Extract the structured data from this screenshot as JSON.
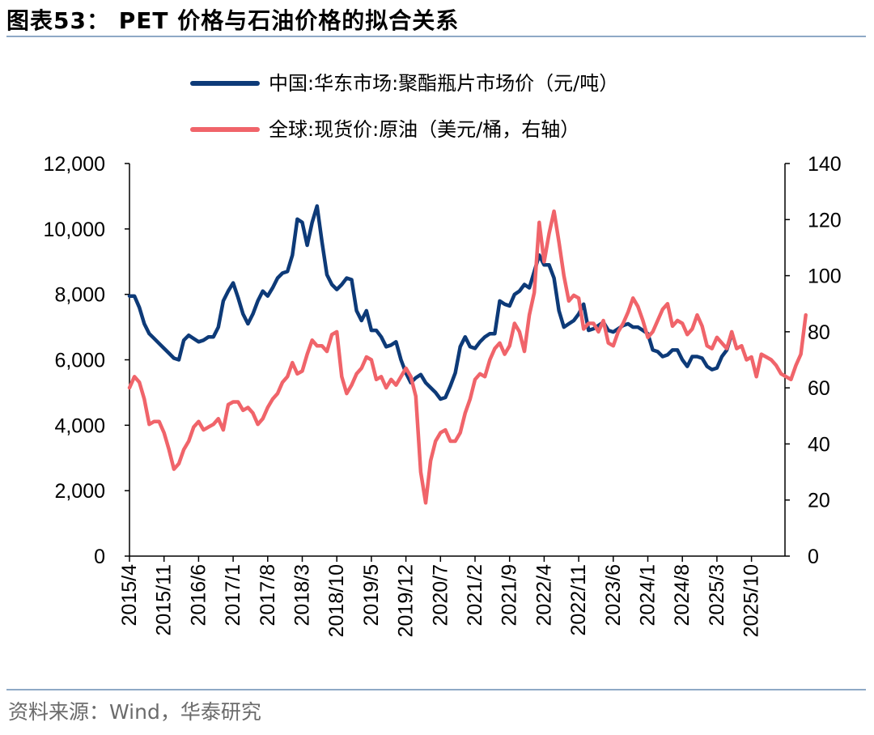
{
  "header": {
    "title": "图表53： PET 价格与石油价格的拟合关系"
  },
  "footer": {
    "source": "资料来源：Wind，华泰研究"
  },
  "chart_data": {
    "type": "line",
    "title": "PET 价格与石油价格的拟合关系",
    "x_tick_labels": [
      "2015/4",
      "2015/11",
      "2016/6",
      "2017/1",
      "2017/8",
      "2018/3",
      "2018/10",
      "2019/5",
      "2019/12",
      "2020/7",
      "2021/2",
      "2021/9",
      "2022/4",
      "2022/11",
      "2023/6",
      "2024/1",
      "2024/8",
      "2025/3",
      "2025/10"
    ],
    "x_start": "2015/4",
    "y_left": {
      "min": 0,
      "max": 12000,
      "ticks": [
        0,
        2000,
        4000,
        6000,
        8000,
        10000,
        12000
      ],
      "tick_labels": [
        "0",
        "2,000",
        "4,000",
        "6,000",
        "8,000",
        "10,000",
        "12,000"
      ]
    },
    "y_right": {
      "min": 0,
      "max": 140,
      "ticks": [
        0,
        20,
        40,
        60,
        80,
        100,
        120,
        140
      ],
      "tick_labels": [
        "0",
        "20",
        "40",
        "60",
        "80",
        "100",
        "120",
        "140"
      ]
    },
    "legend_position": "top-center",
    "colors": {
      "pet": "#0d3a78",
      "oil": "#f0646a",
      "axis": "#000000",
      "rule": "#8ea9c6"
    },
    "series": [
      {
        "name": "中国:华东市场:聚酯瓶片市场价（元/吨）",
        "axis": "left",
        "color": "#0d3a78",
        "points": [
          [
            0,
            7950
          ],
          [
            1,
            7950
          ],
          [
            2,
            7600
          ],
          [
            3,
            7100
          ],
          [
            4,
            6800
          ],
          [
            5,
            6650
          ],
          [
            6,
            6500
          ],
          [
            7,
            6350
          ],
          [
            8,
            6200
          ],
          [
            9,
            6050
          ],
          [
            10,
            6000
          ],
          [
            11,
            6600
          ],
          [
            12,
            6750
          ],
          [
            13,
            6650
          ],
          [
            14,
            6550
          ],
          [
            15,
            6600
          ],
          [
            16,
            6700
          ],
          [
            17,
            6700
          ],
          [
            18,
            7000
          ],
          [
            19,
            7800
          ],
          [
            20,
            8100
          ],
          [
            21,
            8350
          ],
          [
            22,
            7900
          ],
          [
            23,
            7400
          ],
          [
            24,
            7100
          ],
          [
            25,
            7400
          ],
          [
            26,
            7800
          ],
          [
            27,
            8100
          ],
          [
            28,
            7950
          ],
          [
            29,
            8200
          ],
          [
            30,
            8500
          ],
          [
            31,
            8650
          ],
          [
            32,
            8700
          ],
          [
            33,
            9200
          ],
          [
            34,
            10300
          ],
          [
            35,
            10200
          ],
          [
            36,
            9500
          ],
          [
            37,
            10200
          ],
          [
            38,
            10700
          ],
          [
            39,
            9600
          ],
          [
            40,
            8600
          ],
          [
            41,
            8300
          ],
          [
            42,
            8150
          ],
          [
            43,
            8300
          ],
          [
            44,
            8500
          ],
          [
            45,
            8450
          ],
          [
            46,
            7500
          ],
          [
            47,
            7200
          ],
          [
            48,
            7500
          ],
          [
            49,
            6900
          ],
          [
            50,
            6900
          ],
          [
            51,
            6700
          ],
          [
            52,
            6400
          ],
          [
            53,
            6450
          ],
          [
            54,
            6550
          ],
          [
            55,
            6000
          ],
          [
            56,
            5600
          ],
          [
            57,
            5300
          ],
          [
            58,
            5450
          ],
          [
            59,
            5550
          ],
          [
            60,
            5300
          ],
          [
            61,
            5150
          ],
          [
            62,
            5000
          ],
          [
            63,
            4800
          ],
          [
            64,
            4850
          ],
          [
            65,
            5200
          ],
          [
            66,
            5600
          ],
          [
            67,
            6400
          ],
          [
            68,
            6700
          ],
          [
            69,
            6400
          ],
          [
            70,
            6350
          ],
          [
            71,
            6550
          ],
          [
            72,
            6700
          ],
          [
            73,
            6800
          ],
          [
            74,
            6800
          ],
          [
            75,
            7800
          ],
          [
            76,
            7700
          ],
          [
            77,
            7650
          ],
          [
            78,
            8000
          ],
          [
            79,
            8100
          ],
          [
            80,
            8300
          ],
          [
            81,
            8200
          ],
          [
            82,
            8700
          ],
          [
            83,
            9200
          ],
          [
            84,
            8900
          ],
          [
            85,
            8900
          ],
          [
            86,
            8500
          ],
          [
            87,
            7500
          ],
          [
            88,
            7000
          ],
          [
            89,
            7100
          ],
          [
            90,
            7200
          ],
          [
            91,
            7400
          ],
          [
            92,
            7700
          ],
          [
            93,
            6900
          ],
          [
            94,
            6950
          ],
          [
            95,
            7050
          ],
          [
            96,
            7150
          ],
          [
            97,
            6900
          ],
          [
            98,
            6850
          ],
          [
            99,
            6950
          ],
          [
            100,
            7050
          ],
          [
            101,
            7100
          ],
          [
            102,
            7000
          ],
          [
            103,
            7000
          ],
          [
            104,
            6900
          ],
          [
            105,
            6800
          ],
          [
            106,
            6300
          ],
          [
            107,
            6250
          ],
          [
            108,
            6100
          ],
          [
            109,
            6150
          ],
          [
            110,
            6300
          ],
          [
            111,
            6300
          ],
          [
            112,
            6000
          ],
          [
            113,
            5800
          ],
          [
            114,
            6100
          ],
          [
            115,
            6100
          ],
          [
            116,
            6050
          ],
          [
            117,
            5800
          ],
          [
            118,
            5700
          ],
          [
            119,
            5750
          ],
          [
            120,
            6100
          ],
          [
            121,
            6300
          ],
          [
            122,
            6800
          ]
        ]
      },
      {
        "name": "全球:现货价:原油（美元/桶，右轴）",
        "axis": "right",
        "color": "#f0646a",
        "points": [
          [
            0,
            60
          ],
          [
            1,
            64
          ],
          [
            2,
            62
          ],
          [
            3,
            56
          ],
          [
            4,
            47
          ],
          [
            5,
            48
          ],
          [
            6,
            48
          ],
          [
            7,
            44
          ],
          [
            8,
            38
          ],
          [
            9,
            31
          ],
          [
            10,
            33
          ],
          [
            11,
            38
          ],
          [
            12,
            41
          ],
          [
            13,
            46
          ],
          [
            14,
            48
          ],
          [
            15,
            45
          ],
          [
            16,
            46
          ],
          [
            17,
            47
          ],
          [
            18,
            49
          ],
          [
            19,
            45
          ],
          [
            20,
            54
          ],
          [
            21,
            55
          ],
          [
            22,
            55
          ],
          [
            23,
            52
          ],
          [
            24,
            53
          ],
          [
            25,
            51
          ],
          [
            26,
            47
          ],
          [
            27,
            49
          ],
          [
            28,
            53
          ],
          [
            29,
            56
          ],
          [
            30,
            58
          ],
          [
            31,
            62
          ],
          [
            32,
            64
          ],
          [
            33,
            69
          ],
          [
            34,
            65
          ],
          [
            35,
            66
          ],
          [
            36,
            72
          ],
          [
            37,
            77
          ],
          [
            38,
            75
          ],
          [
            39,
            75
          ],
          [
            40,
            73
          ],
          [
            41,
            79
          ],
          [
            42,
            80
          ],
          [
            43,
            64
          ],
          [
            44,
            58
          ],
          [
            45,
            61
          ],
          [
            46,
            65
          ],
          [
            47,
            67
          ],
          [
            48,
            71
          ],
          [
            49,
            70
          ],
          [
            50,
            63
          ],
          [
            51,
            64
          ],
          [
            52,
            60
          ],
          [
            53,
            63
          ],
          [
            54,
            61
          ],
          [
            55,
            64
          ],
          [
            56,
            67
          ],
          [
            57,
            64
          ],
          [
            58,
            57
          ],
          [
            59,
            30
          ],
          [
            60,
            19
          ],
          [
            61,
            34
          ],
          [
            62,
            41
          ],
          [
            63,
            44
          ],
          [
            64,
            45
          ],
          [
            65,
            41
          ],
          [
            66,
            41
          ],
          [
            67,
            44
          ],
          [
            68,
            51
          ],
          [
            69,
            56
          ],
          [
            70,
            63
          ],
          [
            71,
            65
          ],
          [
            72,
            64
          ],
          [
            73,
            70
          ],
          [
            74,
            74
          ],
          [
            75,
            76
          ],
          [
            76,
            72
          ],
          [
            77,
            75
          ],
          [
            78,
            83
          ],
          [
            79,
            80
          ],
          [
            80,
            73
          ],
          [
            81,
            86
          ],
          [
            82,
            94
          ],
          [
            83,
            119
          ],
          [
            84,
            105
          ],
          [
            85,
            115
          ],
          [
            86,
            123
          ],
          [
            87,
            112
          ],
          [
            88,
            100
          ],
          [
            89,
            91
          ],
          [
            90,
            93
          ],
          [
            91,
            92
          ],
          [
            92,
            81
          ],
          [
            93,
            83
          ],
          [
            94,
            83
          ],
          [
            95,
            80
          ],
          [
            96,
            84
          ],
          [
            97,
            76
          ],
          [
            98,
            75
          ],
          [
            99,
            80
          ],
          [
            100,
            83
          ],
          [
            101,
            87
          ],
          [
            102,
            92
          ],
          [
            103,
            89
          ],
          [
            104,
            84
          ],
          [
            105,
            78
          ],
          [
            106,
            80
          ],
          [
            107,
            84
          ],
          [
            108,
            88
          ],
          [
            109,
            90
          ],
          [
            110,
            82
          ],
          [
            111,
            84
          ],
          [
            112,
            83
          ],
          [
            113,
            79
          ],
          [
            114,
            81
          ],
          [
            115,
            86
          ],
          [
            116,
            82
          ],
          [
            117,
            75
          ],
          [
            118,
            74
          ],
          [
            119,
            78
          ],
          [
            120,
            76
          ],
          [
            121,
            74
          ],
          [
            122,
            80
          ],
          [
            123,
            74
          ],
          [
            124,
            75
          ],
          [
            125,
            70
          ],
          [
            126,
            71
          ],
          [
            127,
            64
          ],
          [
            128,
            72
          ],
          [
            129,
            71
          ],
          [
            130,
            70
          ],
          [
            131,
            68
          ],
          [
            132,
            65
          ],
          [
            133,
            64
          ],
          [
            134,
            63
          ],
          [
            135,
            68
          ],
          [
            136,
            72
          ],
          [
            137,
            86
          ]
        ]
      }
    ]
  }
}
